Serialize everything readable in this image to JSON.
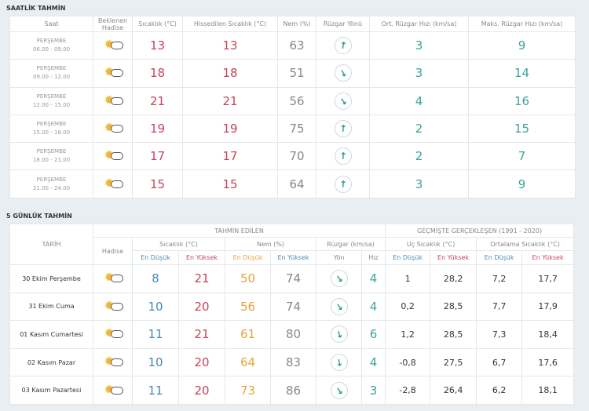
{
  "colors": {
    "max": "#c8435a",
    "min": "#4a8ab5",
    "humidity_min": "#e6a43a",
    "wind": "#3aa39a"
  },
  "hourly": {
    "title": "SAATLİK TAHMİN",
    "headers": [
      "Saat",
      "Beklenen Hadise",
      "Sıcaklık (°C)",
      "Hissedilen Sıcaklık (°C)",
      "Nem (%)",
      "Rüzgar Yönü",
      "Ort. Rüzgar Hızı (km/sa)",
      "Maks. Rüzgar Hızı (km/sa)"
    ],
    "rows": [
      {
        "day": "PERŞEMBE",
        "time": "06.00 - 09.00",
        "icon": "partly-cloudy-icon",
        "temp": "13",
        "feels": "13",
        "humidity": "63",
        "wind_dir_deg": 10,
        "wind_avg": "3",
        "wind_max": "9"
      },
      {
        "day": "PERŞEMBE",
        "time": "09.00 - 12.00",
        "icon": "partly-cloudy-icon",
        "temp": "18",
        "feels": "18",
        "humidity": "51",
        "wind_dir_deg": 155,
        "wind_avg": "3",
        "wind_max": "14"
      },
      {
        "day": "PERŞEMBE",
        "time": "12.00 - 15.00",
        "icon": "partly-cloudy-icon",
        "temp": "21",
        "feels": "21",
        "humidity": "56",
        "wind_dir_deg": 145,
        "wind_avg": "4",
        "wind_max": "16"
      },
      {
        "day": "PERŞEMBE",
        "time": "15.00 - 18.00",
        "icon": "partly-cloudy-icon",
        "temp": "19",
        "feels": "19",
        "humidity": "75",
        "wind_dir_deg": 5,
        "wind_avg": "2",
        "wind_max": "15"
      },
      {
        "day": "PERŞEMBE",
        "time": "18.00 - 21.00",
        "icon": "partly-cloudy-icon",
        "temp": "17",
        "feels": "17",
        "humidity": "70",
        "wind_dir_deg": 5,
        "wind_avg": "2",
        "wind_max": "7"
      },
      {
        "day": "PERŞEMBE",
        "time": "21.00 - 24.00",
        "icon": "partly-cloudy-icon",
        "temp": "15",
        "feels": "15",
        "humidity": "64",
        "wind_dir_deg": 5,
        "wind_avg": "3",
        "wind_max": "9"
      }
    ]
  },
  "daily": {
    "title": "5 GÜNLÜK TAHMİN",
    "h_tarih": "TARİH",
    "h_forecast": "TAHMİN EDİLEN",
    "h_past": "GEÇMİŞTE GERÇEKLEŞEN (1991 - 2020)",
    "h_hadise": "Hadise",
    "h_temp": "Sıcaklık (°C)",
    "h_hum": "Nem (%)",
    "h_wind": "Rüzgar (km/sa)",
    "h_extreme": "Uç Sıcaklık (°C)",
    "h_avg": "Ortalama Sıcaklık (°C)",
    "h_min": "En Düşük",
    "h_max": "En Yüksek",
    "h_dir": "Yön",
    "h_speed": "Hız",
    "rows": [
      {
        "date": "30 Ekim Perşembe",
        "icon": "partly-cloudy-icon",
        "tmin": "8",
        "tmax": "21",
        "hmin": "50",
        "hmax": "74",
        "wind_dir_deg": 145,
        "speed": "4",
        "xmin": "1",
        "xmax": "28,2",
        "amin": "7,2",
        "amax": "17,7"
      },
      {
        "date": "31 Ekim Cuma",
        "icon": "partly-cloudy-icon",
        "tmin": "10",
        "tmax": "20",
        "hmin": "56",
        "hmax": "74",
        "wind_dir_deg": 145,
        "speed": "4",
        "xmin": "0,2",
        "xmax": "28,5",
        "amin": "7,7",
        "amax": "17,9"
      },
      {
        "date": "01 Kasım Cumartesi",
        "icon": "partly-cloudy-icon",
        "tmin": "11",
        "tmax": "21",
        "hmin": "61",
        "hmax": "80",
        "wind_dir_deg": 160,
        "speed": "6",
        "xmin": "1,2",
        "xmax": "28,5",
        "amin": "7,3",
        "amax": "18,4"
      },
      {
        "date": "02 Kasım Pazar",
        "icon": "partly-cloudy-icon",
        "tmin": "10",
        "tmax": "20",
        "hmin": "64",
        "hmax": "83",
        "wind_dir_deg": 170,
        "speed": "4",
        "xmin": "-0,8",
        "xmax": "27,5",
        "amin": "6,7",
        "amax": "17,6"
      },
      {
        "date": "03 Kasım Pazartesi",
        "icon": "partly-cloudy-icon",
        "tmin": "11",
        "tmax": "20",
        "hmin": "73",
        "hmax": "86",
        "wind_dir_deg": 145,
        "speed": "3",
        "xmin": "-2,8",
        "xmax": "26,4",
        "amin": "6,2",
        "amax": "18,1"
      }
    ]
  }
}
